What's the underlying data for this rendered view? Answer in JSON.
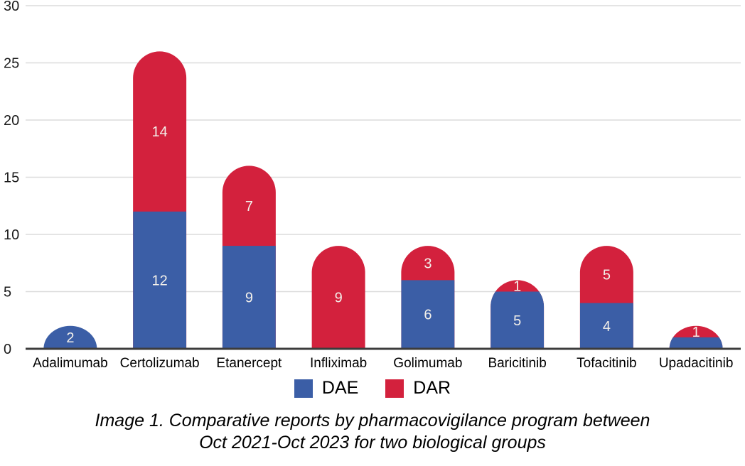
{
  "chart_data": {
    "type": "bar",
    "subtype": "stacked-rounded-capsule",
    "title": "",
    "xlabel": "",
    "ylabel": "",
    "categories": [
      "Adalimumab",
      "Certolizumab",
      "Etanercept",
      "Infliximab",
      "Golimumab",
      "Baricitinib",
      "Tofacitinib",
      "Upadacitinib"
    ],
    "series": [
      {
        "name": "DAE",
        "color": "#3B5EA6",
        "values": [
          2,
          12,
          9,
          0,
          6,
          5,
          4,
          1
        ]
      },
      {
        "name": "DAR",
        "color": "#D3213D",
        "values": [
          0,
          14,
          7,
          9,
          3,
          1,
          5,
          1
        ]
      }
    ],
    "totals": [
      2,
      26,
      16,
      9,
      9,
      6,
      9,
      2
    ],
    "ylim": [
      0,
      30
    ],
    "yticks": [
      0,
      5,
      10,
      15,
      20,
      25,
      30
    ],
    "grid": true,
    "legend_position": "bottom",
    "gridline_color": "#DCDCDC",
    "baseline_color": "#3C3C3C",
    "tick_label_color": "#1B1B1B",
    "category_label_color": "#000000",
    "value_label_color": "#F3F0EA"
  },
  "legend": {
    "items": [
      {
        "label": "DAE",
        "color": "#3B5EA6"
      },
      {
        "label": "DAR",
        "color": "#D3213D"
      }
    ]
  },
  "caption": {
    "line1": "Image 1. Comparative reports by pharmacovigilance program between",
    "line2": "Oct 2021-Oct 2023 for two biological groups"
  }
}
